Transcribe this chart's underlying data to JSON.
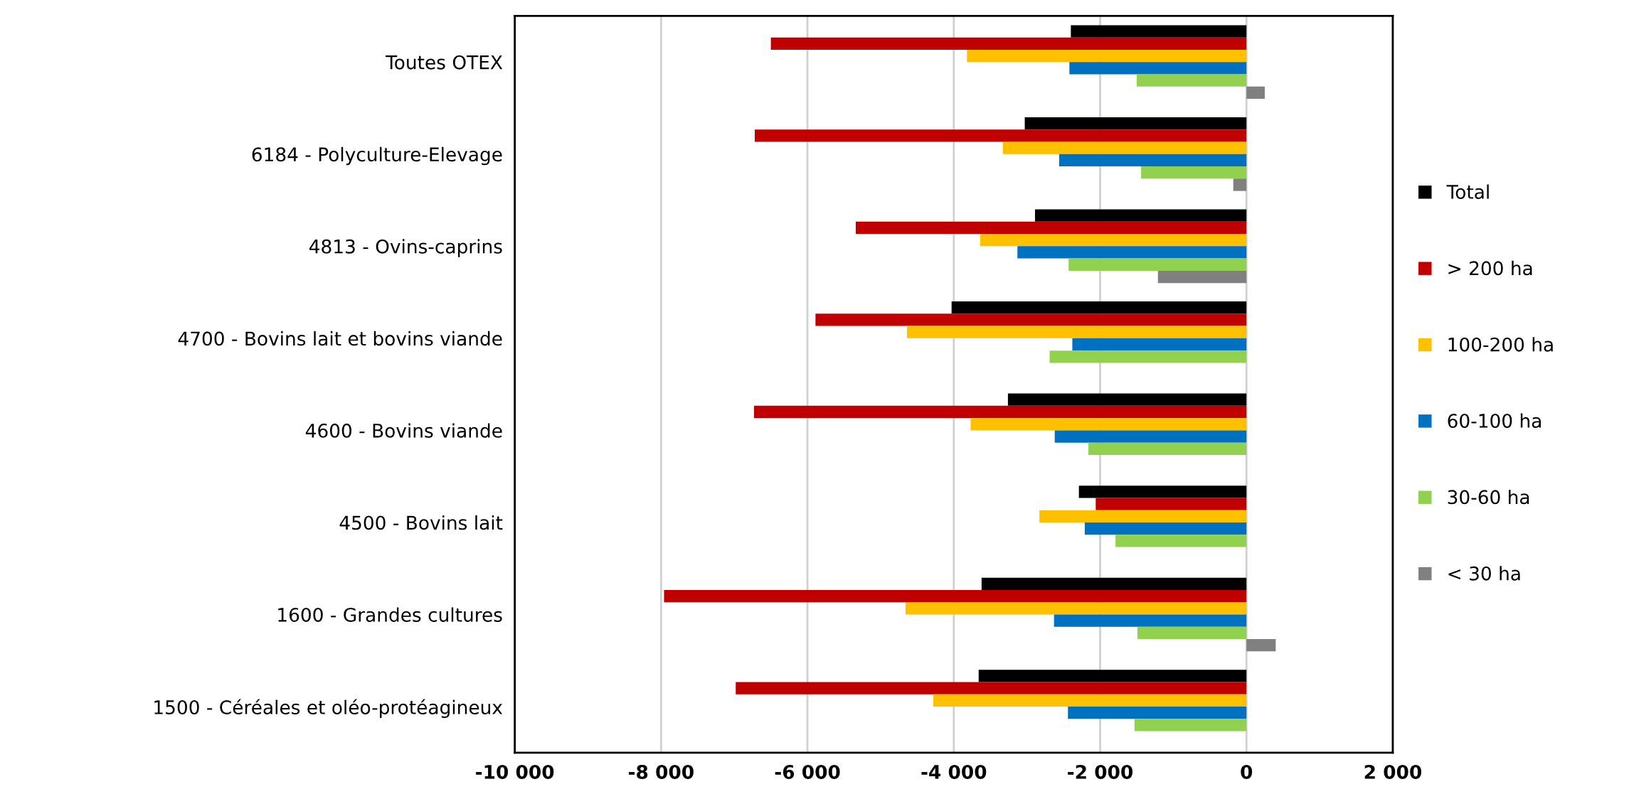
{
  "chart_data": {
    "type": "bar",
    "orientation": "horizontal",
    "categories": [
      "Toutes OTEX",
      "6184 - Polyculture-Elevage",
      "4813 - Ovins-caprins",
      "4700 - Bovins lait et bovins viande",
      "4600 - Bovins viande",
      "4500 - Bovins lait",
      "1600 - Grandes cultures",
      "1500 - Céréales et oléo-protéagineux"
    ],
    "series": [
      {
        "name": "Total",
        "color": "#000000",
        "values": [
          -2400,
          -3030,
          -2890,
          -4030,
          -3260,
          -2290,
          -3620,
          -3660
        ]
      },
      {
        "name": "> 200 ha",
        "color": "#c00000",
        "values": [
          -6500,
          -6720,
          -5340,
          -5890,
          -6730,
          -2060,
          -7960,
          -6980
        ]
      },
      {
        "name": "100-200 ha",
        "color": "#ffc000",
        "values": [
          -3820,
          -3330,
          -3640,
          -4640,
          -3770,
          -2830,
          -4660,
          -4280
        ]
      },
      {
        "name": "60-100 ha",
        "color": "#0070c0",
        "values": [
          -2420,
          -2560,
          -3130,
          -2380,
          -2620,
          -2210,
          -2630,
          -2440
        ]
      },
      {
        "name": "30-60 ha",
        "color": "#92d050",
        "values": [
          -1500,
          -1440,
          -2430,
          -2690,
          -2160,
          -1790,
          -1490,
          -1530
        ]
      },
      {
        "name": "< 30 ha",
        "color": "#808080",
        "values": [
          250,
          -180,
          -1210,
          null,
          null,
          null,
          400,
          null
        ]
      }
    ],
    "xlim": [
      -10000,
      2000
    ],
    "xticks": [
      {
        "value": -10000,
        "label": "-10 000"
      },
      {
        "value": -8000,
        "label": "-8 000"
      },
      {
        "value": -6000,
        "label": "-6 000"
      },
      {
        "value": -4000,
        "label": "-4 000"
      },
      {
        "value": -2000,
        "label": "-2 000"
      },
      0,
      {
        "value": 2000,
        "label": "2 000"
      }
    ],
    "grid": "x",
    "legend": "right"
  }
}
